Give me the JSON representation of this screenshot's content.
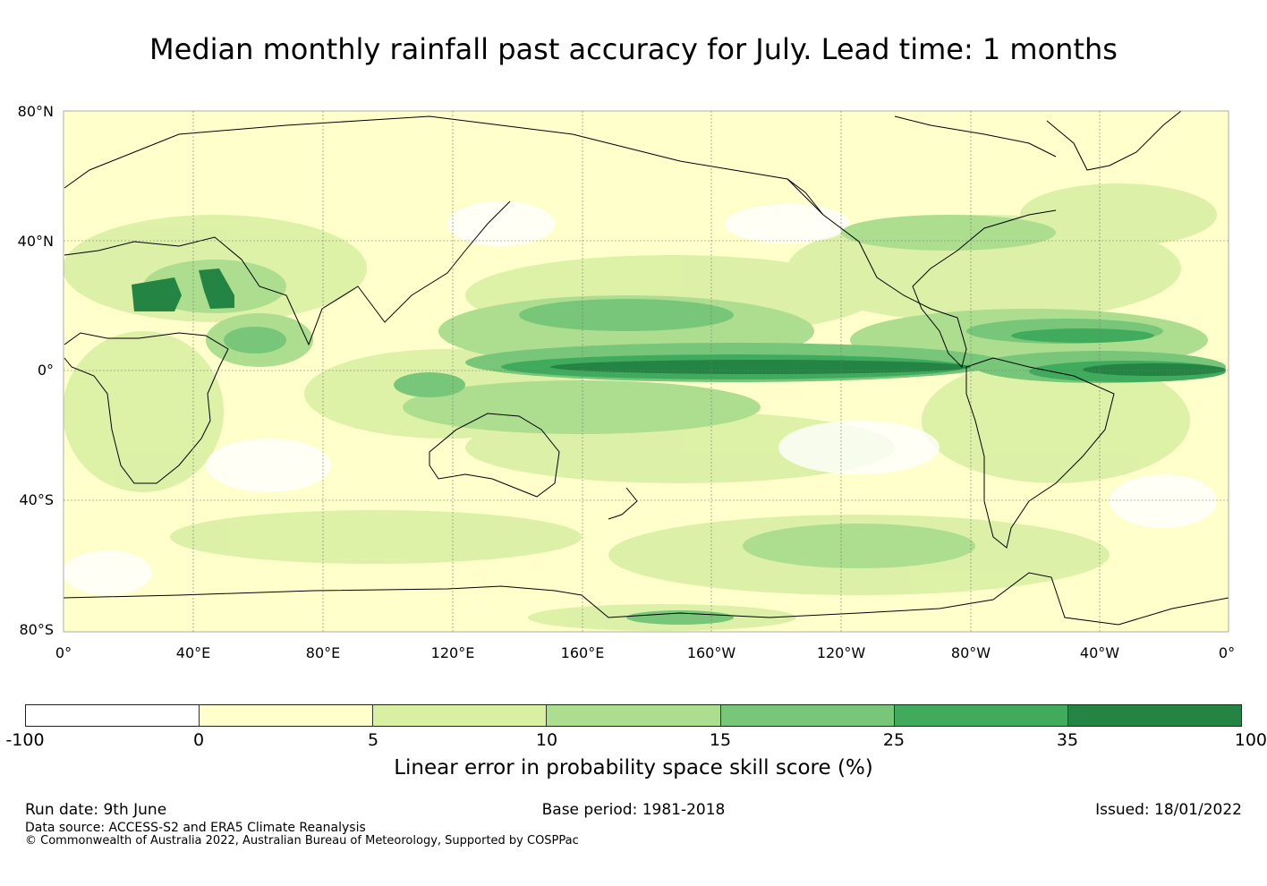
{
  "title": "Median monthly rainfall past accuracy for July. Lead time: 1 months",
  "map": {
    "lat_labels": [
      "80°N",
      "40°N",
      "0°",
      "40°S",
      "80°S"
    ],
    "lon_labels": [
      "0°",
      "40°E",
      "80°E",
      "120°E",
      "160°E",
      "160°W",
      "120°W",
      "80°W",
      "40°W",
      "0°"
    ],
    "lat_range": [
      -80,
      80
    ],
    "lon_range": [
      0,
      360
    ],
    "grid": true,
    "high_skill_zones": [
      {
        "name": "Equatorial Pacific",
        "level": "35-100"
      },
      {
        "name": "Equatorial Atlantic",
        "level": "35-100"
      },
      {
        "name": "North Africa",
        "level": "35-100"
      },
      {
        "name": "Arabian Peninsula",
        "level": "35-100"
      }
    ]
  },
  "colorbar": {
    "ticks": [
      "-100",
      "0",
      "5",
      "10",
      "15",
      "25",
      "35",
      "100"
    ],
    "colors": [
      "#ffffff",
      "#ffffcc",
      "#d9f0a3",
      "#addd8e",
      "#78c679",
      "#41ab5d",
      "#238443"
    ],
    "label": "Linear error in probability space skill score (%)"
  },
  "footer": {
    "run_date": "Run date: 9th June",
    "base_period": "Base period: 1981-2018",
    "issued": "Issued: 18/01/2022",
    "data_source": "Data source: ACCESS-S2 and ERA5 Climate Reanalysis",
    "copyright": "© Commonwealth of Australia 2022, Australian Bureau of Meteorology, Supported by COSPPac"
  }
}
